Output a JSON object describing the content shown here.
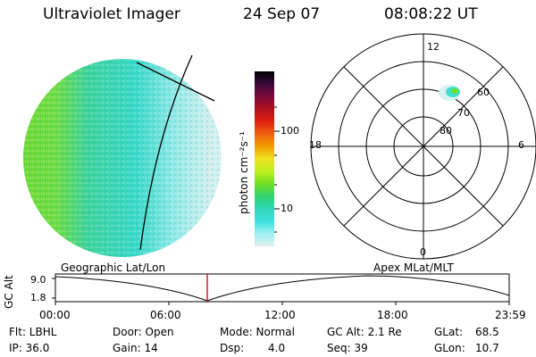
{
  "header": {
    "title": "Ultraviolet Imager",
    "date": "24 Sep 07",
    "time": "08:08:22 UT"
  },
  "colorbar": {
    "unit_label": "photon cm⁻²s⁻¹",
    "ticks": [
      "100",
      "10"
    ],
    "stops": [
      "#000000",
      "#3a0a3a",
      "#7a0a3a",
      "#b01020",
      "#e02010",
      "#f06010",
      "#f0a000",
      "#f0e020",
      "#c0f020",
      "#70e020",
      "#30d070",
      "#30d8b8",
      "#40e0e0",
      "#a0f0f0",
      "#e0f0f0"
    ]
  },
  "polar": {
    "mlt_labels": {
      "top": "12",
      "left": "18",
      "right": "6",
      "bottom": "0"
    },
    "lat_labels": [
      "60",
      "70",
      "80"
    ]
  },
  "timeline": {
    "ylabel": "GC Alt",
    "yticks": [
      "9.0",
      "1.8"
    ],
    "left_caption": "Geographic Lat/Lon",
    "right_caption": "Apex MLat/MLT",
    "xticks": [
      "00:00",
      "06:00",
      "12:00",
      "18:00",
      "23:59"
    ],
    "marker_color": "#cc0000"
  },
  "info": {
    "filter": "Flt: LBHL",
    "door": "Door: Open",
    "mode": "Mode: Normal",
    "gc_alt": "GC Alt: 2.1 Re",
    "glat_label": "GLat:",
    "glat_value": "68.5",
    "ip": "IP: 36.0",
    "gain": "Gain: 14",
    "dsp_label": "Dsp:",
    "dsp_value": "4.0",
    "seq": "Seq: 39",
    "glon_label": "GLon:",
    "glon_value": "10.7"
  }
}
